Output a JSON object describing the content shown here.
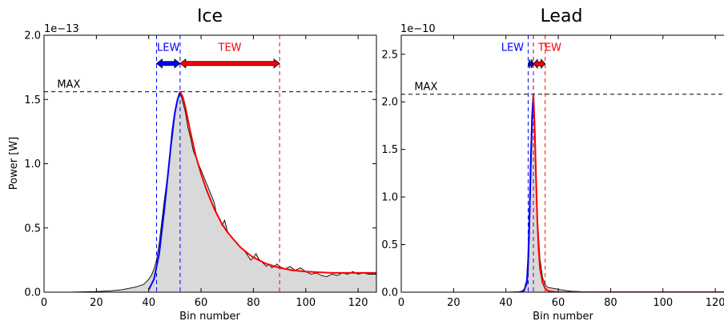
{
  "chart_data": [
    {
      "type": "line",
      "title": "Ice",
      "xlabel": "Bin number",
      "ylabel": "Power [W]",
      "offset_text": "1e−13",
      "xlim": [
        0,
        127
      ],
      "ylim": [
        0,
        2.0
      ],
      "xticks": [
        0,
        20,
        40,
        60,
        80,
        100,
        120
      ],
      "xtick_labels": [
        "0",
        "20",
        "40",
        "60",
        "80",
        "100",
        "120"
      ],
      "yticks": [
        0,
        0.5,
        1.0,
        1.5,
        2.0
      ],
      "ytick_labels": [
        "0.0",
        "0.5",
        "1.0",
        "1.5",
        "2.0"
      ],
      "max_label": "MAX",
      "max_value": 1.56,
      "lew_label": "LEW",
      "tew_label": "TEW",
      "lew_start": 43,
      "peak_bin": 52,
      "tew_end": 90,
      "arrow_y": 1.78,
      "colors": {
        "waveform": "#000000",
        "fill": "#d9d9d9",
        "lew": "#0000ff",
        "tew": "#ff0000",
        "max_line": "#000000"
      },
      "series": [
        {
          "role": "waveform",
          "x": [
            0,
            10,
            20,
            25,
            30,
            35,
            38,
            40,
            41,
            42,
            43,
            44,
            45,
            46,
            47,
            48,
            49,
            50,
            51,
            52,
            53,
            54,
            55,
            56,
            57,
            58,
            59,
            60,
            61,
            62,
            63,
            64,
            65,
            66,
            67,
            68,
            69,
            70,
            71,
            72,
            73,
            74,
            75,
            76,
            77,
            78,
            79,
            80,
            81,
            82,
            83,
            84,
            85,
            86,
            87,
            88,
            89,
            90,
            92,
            94,
            96,
            98,
            100,
            102,
            104,
            106,
            108,
            110,
            112,
            114,
            116,
            118,
            120,
            122,
            124,
            127
          ],
          "y": [
            0.0,
            0.0,
            0.005,
            0.01,
            0.02,
            0.04,
            0.06,
            0.1,
            0.13,
            0.18,
            0.25,
            0.38,
            0.55,
            0.72,
            0.88,
            1.05,
            1.2,
            1.38,
            1.5,
            1.56,
            1.48,
            1.4,
            1.28,
            1.2,
            1.1,
            1.05,
            1.0,
            0.95,
            0.9,
            0.85,
            0.8,
            0.75,
            0.7,
            0.6,
            0.58,
            0.52,
            0.56,
            0.48,
            0.44,
            0.42,
            0.4,
            0.37,
            0.35,
            0.33,
            0.31,
            0.28,
            0.25,
            0.27,
            0.3,
            0.26,
            0.24,
            0.22,
            0.2,
            0.22,
            0.19,
            0.2,
            0.22,
            0.2,
            0.18,
            0.2,
            0.17,
            0.19,
            0.16,
            0.14,
            0.15,
            0.13,
            0.12,
            0.14,
            0.13,
            0.15,
            0.14,
            0.16,
            0.14,
            0.15,
            0.14,
            0.14
          ]
        },
        {
          "role": "leading-edge-fit",
          "x": [
            40,
            42,
            44,
            46,
            47,
            48,
            49,
            50,
            51,
            52
          ],
          "y": [
            0.02,
            0.1,
            0.3,
            0.65,
            0.85,
            1.05,
            1.25,
            1.4,
            1.5,
            1.56
          ]
        },
        {
          "role": "trailing-edge-fit",
          "x": [
            52,
            53,
            54,
            55,
            56,
            58,
            60,
            62,
            65,
            68,
            70,
            72,
            75,
            78,
            80,
            85,
            90,
            95,
            100,
            105,
            110,
            115,
            120,
            127
          ],
          "y": [
            1.56,
            1.52,
            1.44,
            1.34,
            1.24,
            1.06,
            0.92,
            0.8,
            0.65,
            0.53,
            0.47,
            0.42,
            0.35,
            0.3,
            0.27,
            0.22,
            0.19,
            0.17,
            0.16,
            0.155,
            0.15,
            0.15,
            0.15,
            0.15
          ]
        }
      ]
    },
    {
      "type": "line",
      "title": "Lead",
      "xlabel": "Bin number",
      "ylabel": "",
      "offset_text": "1e−10",
      "xlim": [
        0,
        127
      ],
      "ylim": [
        0,
        2.7
      ],
      "xticks": [
        0,
        20,
        40,
        60,
        80,
        100,
        120
      ],
      "xtick_labels": [
        "0",
        "20",
        "40",
        "60",
        "80",
        "100",
        "120"
      ],
      "yticks": [
        0,
        0.5,
        1.0,
        1.5,
        2.0,
        2.5
      ],
      "ytick_labels": [
        "0.0",
        "0.5",
        "1.0",
        "1.5",
        "2.0",
        "2.5"
      ],
      "max_label": "MAX",
      "max_value": 2.08,
      "lew_label": "LEW",
      "tew_label": "TEW",
      "lew_start": 48.5,
      "peak_bin": 50.5,
      "tew_end": 55,
      "arrow_y": 2.4,
      "colors": {
        "waveform": "#000000",
        "fill": "#d9d9d9",
        "lew": "#0000ff",
        "tew": "#ff0000",
        "max_line": "#000000"
      },
      "series": [
        {
          "role": "waveform",
          "x": [
            0,
            20,
            40,
            45,
            46,
            47,
            48,
            48.5,
            49,
            49.5,
            50,
            50.5,
            51,
            51.5,
            52,
            53,
            54,
            55,
            56,
            58,
            60,
            62,
            65,
            70,
            80,
            100,
            127
          ],
          "y": [
            0.0,
            0.0,
            0.0,
            0.005,
            0.01,
            0.03,
            0.08,
            0.2,
            0.6,
            1.2,
            1.75,
            2.08,
            1.8,
            1.3,
            0.8,
            0.35,
            0.15,
            0.08,
            0.05,
            0.04,
            0.03,
            0.02,
            0.01,
            0.005,
            0.0,
            0.0,
            0.0
          ]
        },
        {
          "role": "leading-edge-fit",
          "x": [
            46,
            47,
            48,
            48.5,
            49,
            49.5,
            50,
            50.5
          ],
          "y": [
            0.0,
            0.02,
            0.12,
            0.35,
            0.8,
            1.4,
            1.85,
            2.08
          ]
        },
        {
          "role": "trailing-edge-fit",
          "x": [
            50.5,
            51,
            51.5,
            52,
            52.5,
            53,
            54,
            55,
            56,
            58,
            60,
            65,
            70,
            80,
            100,
            127
          ],
          "y": [
            2.08,
            1.7,
            1.2,
            0.75,
            0.45,
            0.25,
            0.1,
            0.04,
            0.015,
            0.005,
            0.0,
            0.0,
            0.0,
            0.0,
            0.0,
            0.0
          ]
        }
      ]
    }
  ]
}
